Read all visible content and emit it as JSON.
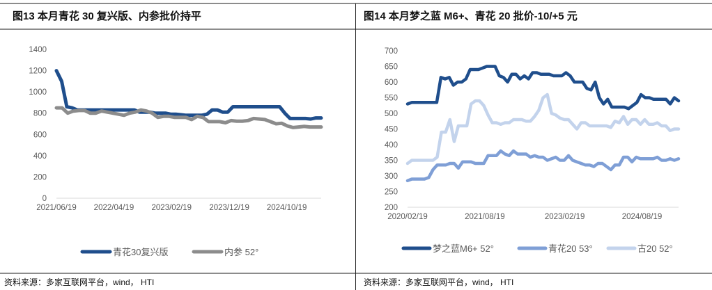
{
  "left": {
    "title": "图13 本月青花 30 复兴版、内参批价持平",
    "source": "资料来源：多家互联网平台，wind， HTI"
  },
  "right": {
    "title": "图14 本月梦之蓝 M6+、青花 20 批价-10/+5 元",
    "source": "资料来源：多家互联网平台，wind， HTI"
  },
  "chart_data": [
    {
      "type": "line",
      "title": "图13 本月青花 30 复兴版、内参批价持平",
      "ylim": [
        0,
        1400
      ],
      "yticks": [
        "0",
        "200",
        "400",
        "600",
        "800",
        "1000",
        "1200",
        "1400"
      ],
      "xticks": [
        "2021/06/19",
        "2022/04/19",
        "2023/02/19",
        "2023/12/19",
        "2024/10/19"
      ],
      "legend_position": "bottom",
      "series": [
        {
          "name": "青花30复兴版",
          "color": "#1f4e8c",
          "values": [
            1200,
            1100,
            860,
            850,
            830,
            830,
            830,
            830,
            830,
            830,
            830,
            830,
            830,
            830,
            830,
            830,
            810,
            810,
            810,
            800,
            800,
            800,
            790,
            790,
            785,
            780,
            780,
            780,
            780,
            790,
            830,
            830,
            810,
            810,
            860,
            860,
            860,
            860,
            860,
            860,
            860,
            860,
            860,
            860,
            800,
            750,
            750,
            750,
            750,
            745,
            755,
            755
          ]
        },
        {
          "name": "内参 52°",
          "color": "#8c8c8c",
          "values": [
            850,
            850,
            800,
            820,
            825,
            825,
            800,
            800,
            820,
            810,
            800,
            790,
            780,
            800,
            810,
            830,
            820,
            800,
            760,
            770,
            770,
            760,
            760,
            760,
            740,
            770,
            760,
            720,
            720,
            720,
            710,
            730,
            725,
            725,
            730,
            750,
            745,
            740,
            720,
            700,
            705,
            680,
            665,
            670,
            675,
            670,
            670,
            670
          ]
        }
      ]
    },
    {
      "type": "line",
      "title": "图14 本月梦之蓝 M6+、青花 20 批价-10/+5 元",
      "ylim": [
        200,
        700
      ],
      "yticks": [
        "200",
        "250",
        "300",
        "350",
        "400",
        "450",
        "500",
        "550",
        "600",
        "650",
        "700"
      ],
      "xticks": [
        "2020/02/19",
        "2021/08/19",
        "2023/02/19",
        "2024/08/19"
      ],
      "legend_position": "bottom",
      "series": [
        {
          "name": "梦之蓝M6+ 52°",
          "color": "#1f4e8c",
          "values": [
            530,
            535,
            535,
            535,
            535,
            535,
            535,
            535,
            615,
            610,
            615,
            590,
            600,
            600,
            610,
            640,
            640,
            640,
            645,
            650,
            650,
            650,
            620,
            615,
            600,
            625,
            625,
            610,
            620,
            610,
            630,
            630,
            625,
            625,
            625,
            620,
            620,
            620,
            630,
            620,
            600,
            600,
            600,
            580,
            575,
            600,
            550,
            530,
            545,
            520,
            520,
            520,
            520,
            515,
            525,
            535,
            560,
            550,
            550,
            545,
            545,
            545,
            545,
            530,
            550,
            540
          ]
        },
        {
          "name": "青花20 53°",
          "color": "#7f9fd6",
          "values": [
            285,
            290,
            290,
            290,
            290,
            295,
            320,
            335,
            335,
            335,
            340,
            340,
            325,
            345,
            345,
            345,
            340,
            340,
            340,
            365,
            365,
            365,
            380,
            370,
            365,
            380,
            370,
            370,
            370,
            360,
            365,
            360,
            360,
            350,
            355,
            360,
            350,
            350,
            365,
            350,
            345,
            340,
            335,
            335,
            330,
            340,
            340,
            330,
            320,
            335,
            335,
            360,
            360,
            345,
            360,
            355,
            355,
            355,
            355,
            360,
            350,
            350,
            355,
            350,
            355
          ]
        },
        {
          "name": "古20 52°",
          "color": "#c3d3ec",
          "values": [
            340,
            350,
            350,
            350,
            350,
            350,
            350,
            360,
            440,
            440,
            480,
            410,
            460,
            460,
            460,
            530,
            540,
            540,
            525,
            495,
            470,
            470,
            465,
            470,
            470,
            480,
            480,
            480,
            475,
            475,
            490,
            510,
            550,
            560,
            500,
            495,
            485,
            480,
            480,
            465,
            450,
            470,
            470,
            460,
            460,
            460,
            460,
            460,
            455,
            475,
            470,
            490,
            465,
            480,
            480,
            465,
            480,
            465,
            465,
            470,
            460,
            460,
            445,
            450,
            450
          ]
        }
      ]
    }
  ]
}
